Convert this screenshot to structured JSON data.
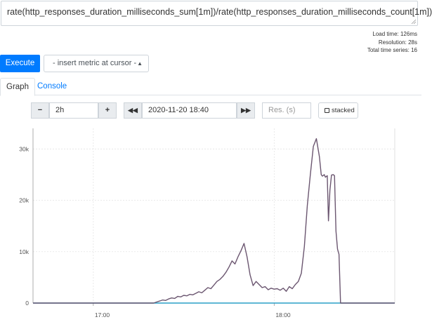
{
  "query": {
    "expression": "rate(http_responses_duration_milliseconds_sum[1m])/rate(http_responses_duration_milliseconds_count[1m])"
  },
  "stats": {
    "load_time": "Load time: 126ms",
    "resolution": "Resolution: 28s",
    "total_series": "Total time series: 16"
  },
  "toolbar": {
    "execute_label": "Execute",
    "metric_select": "- insert metric at cursor -"
  },
  "tabs": {
    "graph": "Graph",
    "console": "Console"
  },
  "controls": {
    "range_minus": "−",
    "range_value": "2h",
    "range_plus": "+",
    "time_back": "◀◀",
    "end_time": "2020-11-20 18:40",
    "time_fwd": "▶▶",
    "res_placeholder": "Res. (s)",
    "stacked_label": "stacked"
  },
  "colors": {
    "accent": "#007bff",
    "series_main": "#6b5670",
    "series_low": "#2a9fc7"
  },
  "chart_data": {
    "type": "line",
    "x_range": [
      "2020-11-20 16:40",
      "2020-11-20 18:40"
    ],
    "ylim": [
      0,
      34000
    ],
    "y_ticks": [
      {
        "value": 0,
        "label": "0"
      },
      {
        "value": 10000,
        "label": "10k"
      },
      {
        "value": 20000,
        "label": "20k"
      },
      {
        "value": 30000,
        "label": "30k"
      }
    ],
    "x_ticks": [
      {
        "minute": 20,
        "label": "17:00"
      },
      {
        "minute": 80,
        "label": "18:00"
      }
    ],
    "grid": true,
    "series": [
      {
        "color": "#6b5670",
        "points": [
          [
            0,
            0
          ],
          [
            40,
            0
          ],
          [
            41,
            200
          ],
          [
            42,
            400
          ],
          [
            43,
            600
          ],
          [
            44,
            500
          ],
          [
            45,
            800
          ],
          [
            46,
            1000
          ],
          [
            47,
            900
          ],
          [
            48,
            1300
          ],
          [
            49,
            1200
          ],
          [
            50,
            1500
          ],
          [
            51,
            1400
          ],
          [
            52,
            1700
          ],
          [
            53,
            1600
          ],
          [
            54,
            1900
          ],
          [
            55,
            2200
          ],
          [
            56,
            2000
          ],
          [
            57,
            2500
          ],
          [
            58,
            3000
          ],
          [
            59,
            2800
          ],
          [
            60,
            3500
          ],
          [
            61,
            4200
          ],
          [
            62,
            4600
          ],
          [
            63,
            5200
          ],
          [
            64,
            6000
          ],
          [
            65,
            7000
          ],
          [
            66,
            8200
          ],
          [
            67,
            7600
          ],
          [
            68,
            9000
          ],
          [
            69,
            10200
          ],
          [
            70,
            11600
          ],
          [
            71,
            9000
          ],
          [
            72,
            5500
          ],
          [
            73,
            3400
          ],
          [
            74,
            4200
          ],
          [
            75,
            3600
          ],
          [
            76,
            3000
          ],
          [
            77,
            3200
          ],
          [
            78,
            2600
          ],
          [
            79,
            2900
          ],
          [
            80,
            2700
          ],
          [
            81,
            2800
          ],
          [
            82,
            2500
          ],
          [
            83,
            2900
          ],
          [
            84,
            2300
          ],
          [
            85,
            3200
          ],
          [
            86,
            2800
          ],
          [
            87,
            3600
          ],
          [
            88,
            4200
          ],
          [
            89,
            5800
          ],
          [
            90,
            11000
          ],
          [
            91,
            19000
          ],
          [
            92,
            25000
          ],
          [
            93,
            30500
          ],
          [
            94,
            32000
          ],
          [
            95,
            28500
          ],
          [
            95.6,
            25000
          ],
          [
            96,
            24700
          ],
          [
            96.6,
            25000
          ],
          [
            97,
            24500
          ],
          [
            97.6,
            24800
          ],
          [
            98,
            16000
          ],
          [
            98.5,
            22000
          ],
          [
            99,
            24900
          ],
          [
            99.6,
            25000
          ],
          [
            100,
            24800
          ],
          [
            100.5,
            14000
          ],
          [
            101,
            10500
          ],
          [
            101.5,
            9500
          ],
          [
            102,
            0
          ],
          [
            120,
            0
          ]
        ]
      },
      {
        "color": "#2a9fc7",
        "points": [
          [
            0,
            0
          ],
          [
            120,
            0
          ]
        ]
      }
    ]
  }
}
